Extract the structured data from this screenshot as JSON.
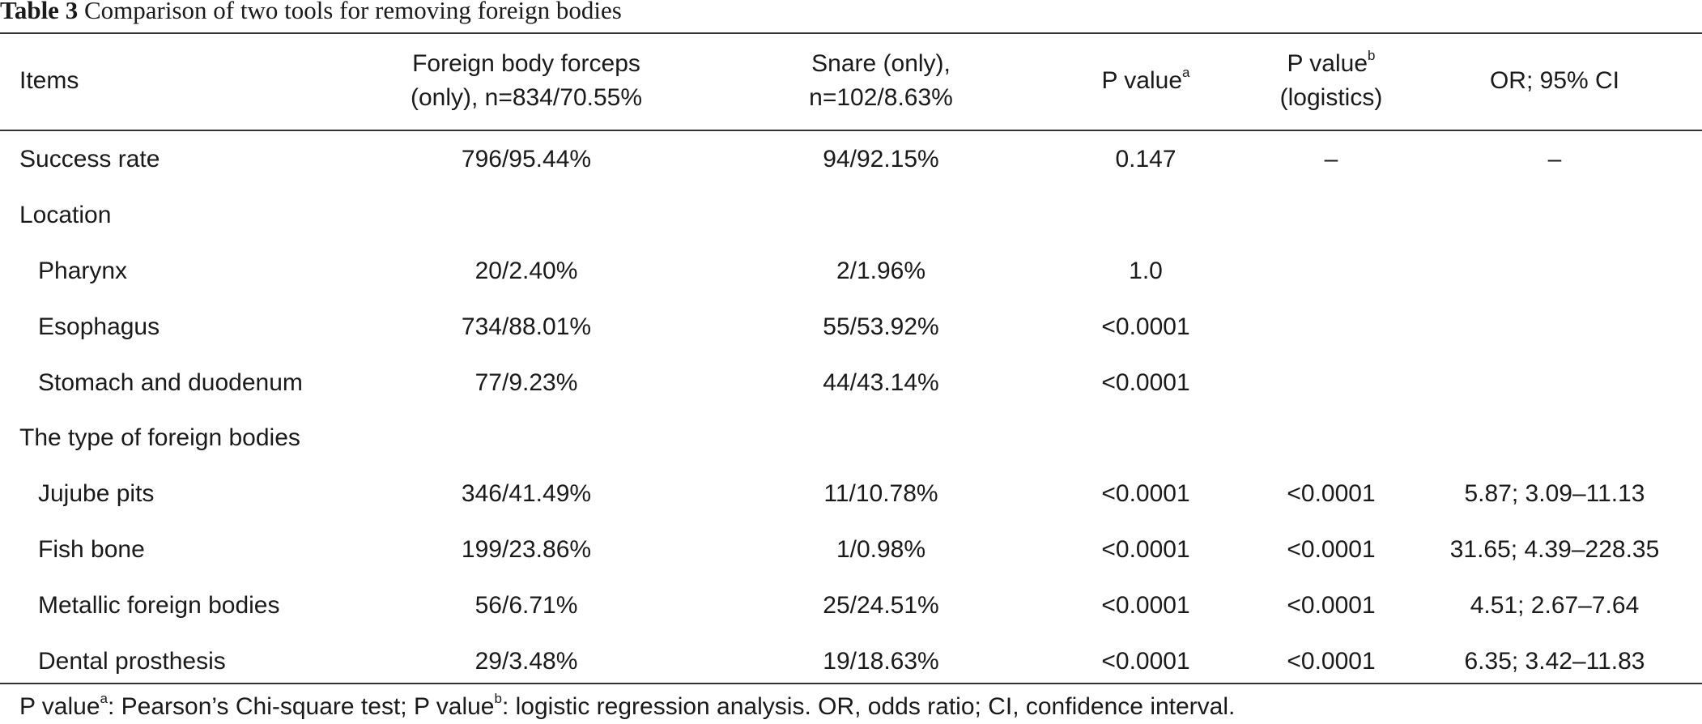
{
  "table": {
    "title_label": "Table 3",
    "title_text": "Comparison of two tools for removing foreign bodies",
    "headers": {
      "items": "Items",
      "forceps_line1": "Foreign body forceps",
      "forceps_line2": "(only), n=834/70.55%",
      "snare_line1": "Snare (only),",
      "snare_line2": "n=102/8.63%",
      "pvalue_a": "P value",
      "pvalue_a_sup": "a",
      "pvalue_b": "P value",
      "pvalue_b_sup": "b",
      "pvalue_b_line2": "(logistics)",
      "or_ci": "OR; 95% CI"
    },
    "rows": [
      {
        "item": "Success rate",
        "indent": false,
        "forceps": "796/95.44%",
        "snare": "94/92.15%",
        "p_a": "0.147",
        "p_b": "–",
        "or_ci": "–"
      },
      {
        "item": "Location",
        "indent": false,
        "forceps": "",
        "snare": "",
        "p_a": "",
        "p_b": "",
        "or_ci": ""
      },
      {
        "item": "Pharynx",
        "indent": true,
        "forceps": "20/2.40%",
        "snare": "2/1.96%",
        "p_a": "1.0",
        "p_b": "",
        "or_ci": ""
      },
      {
        "item": "Esophagus",
        "indent": true,
        "forceps": "734/88.01%",
        "snare": "55/53.92%",
        "p_a": "<0.0001",
        "p_b": "",
        "or_ci": ""
      },
      {
        "item": "Stomach and duodenum",
        "indent": true,
        "forceps": "77/9.23%",
        "snare": "44/43.14%",
        "p_a": "<0.0001",
        "p_b": "",
        "or_ci": ""
      },
      {
        "item": "The type of foreign bodies",
        "indent": false,
        "forceps": "",
        "snare": "",
        "p_a": "",
        "p_b": "",
        "or_ci": ""
      },
      {
        "item": "Jujube pits",
        "indent": true,
        "forceps": "346/41.49%",
        "snare": "11/10.78%",
        "p_a": "<0.0001",
        "p_b": "<0.0001",
        "or_ci": "5.87; 3.09–11.13"
      },
      {
        "item": "Fish bone",
        "indent": true,
        "forceps": "199/23.86%",
        "snare": "1/0.98%",
        "p_a": "<0.0001",
        "p_b": "<0.0001",
        "or_ci": "31.65; 4.39–228.35"
      },
      {
        "item": "Metallic foreign bodies",
        "indent": true,
        "forceps": "56/6.71%",
        "snare": "25/24.51%",
        "p_a": "<0.0001",
        "p_b": "<0.0001",
        "or_ci": "4.51; 2.67–7.64"
      },
      {
        "item": "Dental prosthesis",
        "indent": true,
        "forceps": "29/3.48%",
        "snare": "19/18.63%",
        "p_a": "<0.0001",
        "p_b": "<0.0001",
        "or_ci": "6.35; 3.42–11.83"
      }
    ],
    "footnote": {
      "part1": "P value",
      "sup_a": "a",
      "part2": ": Pearson’s Chi-square test; P value",
      "sup_b": "b",
      "part3": ": logistic regression analysis. OR, odds ratio; CI, confidence interval."
    }
  }
}
